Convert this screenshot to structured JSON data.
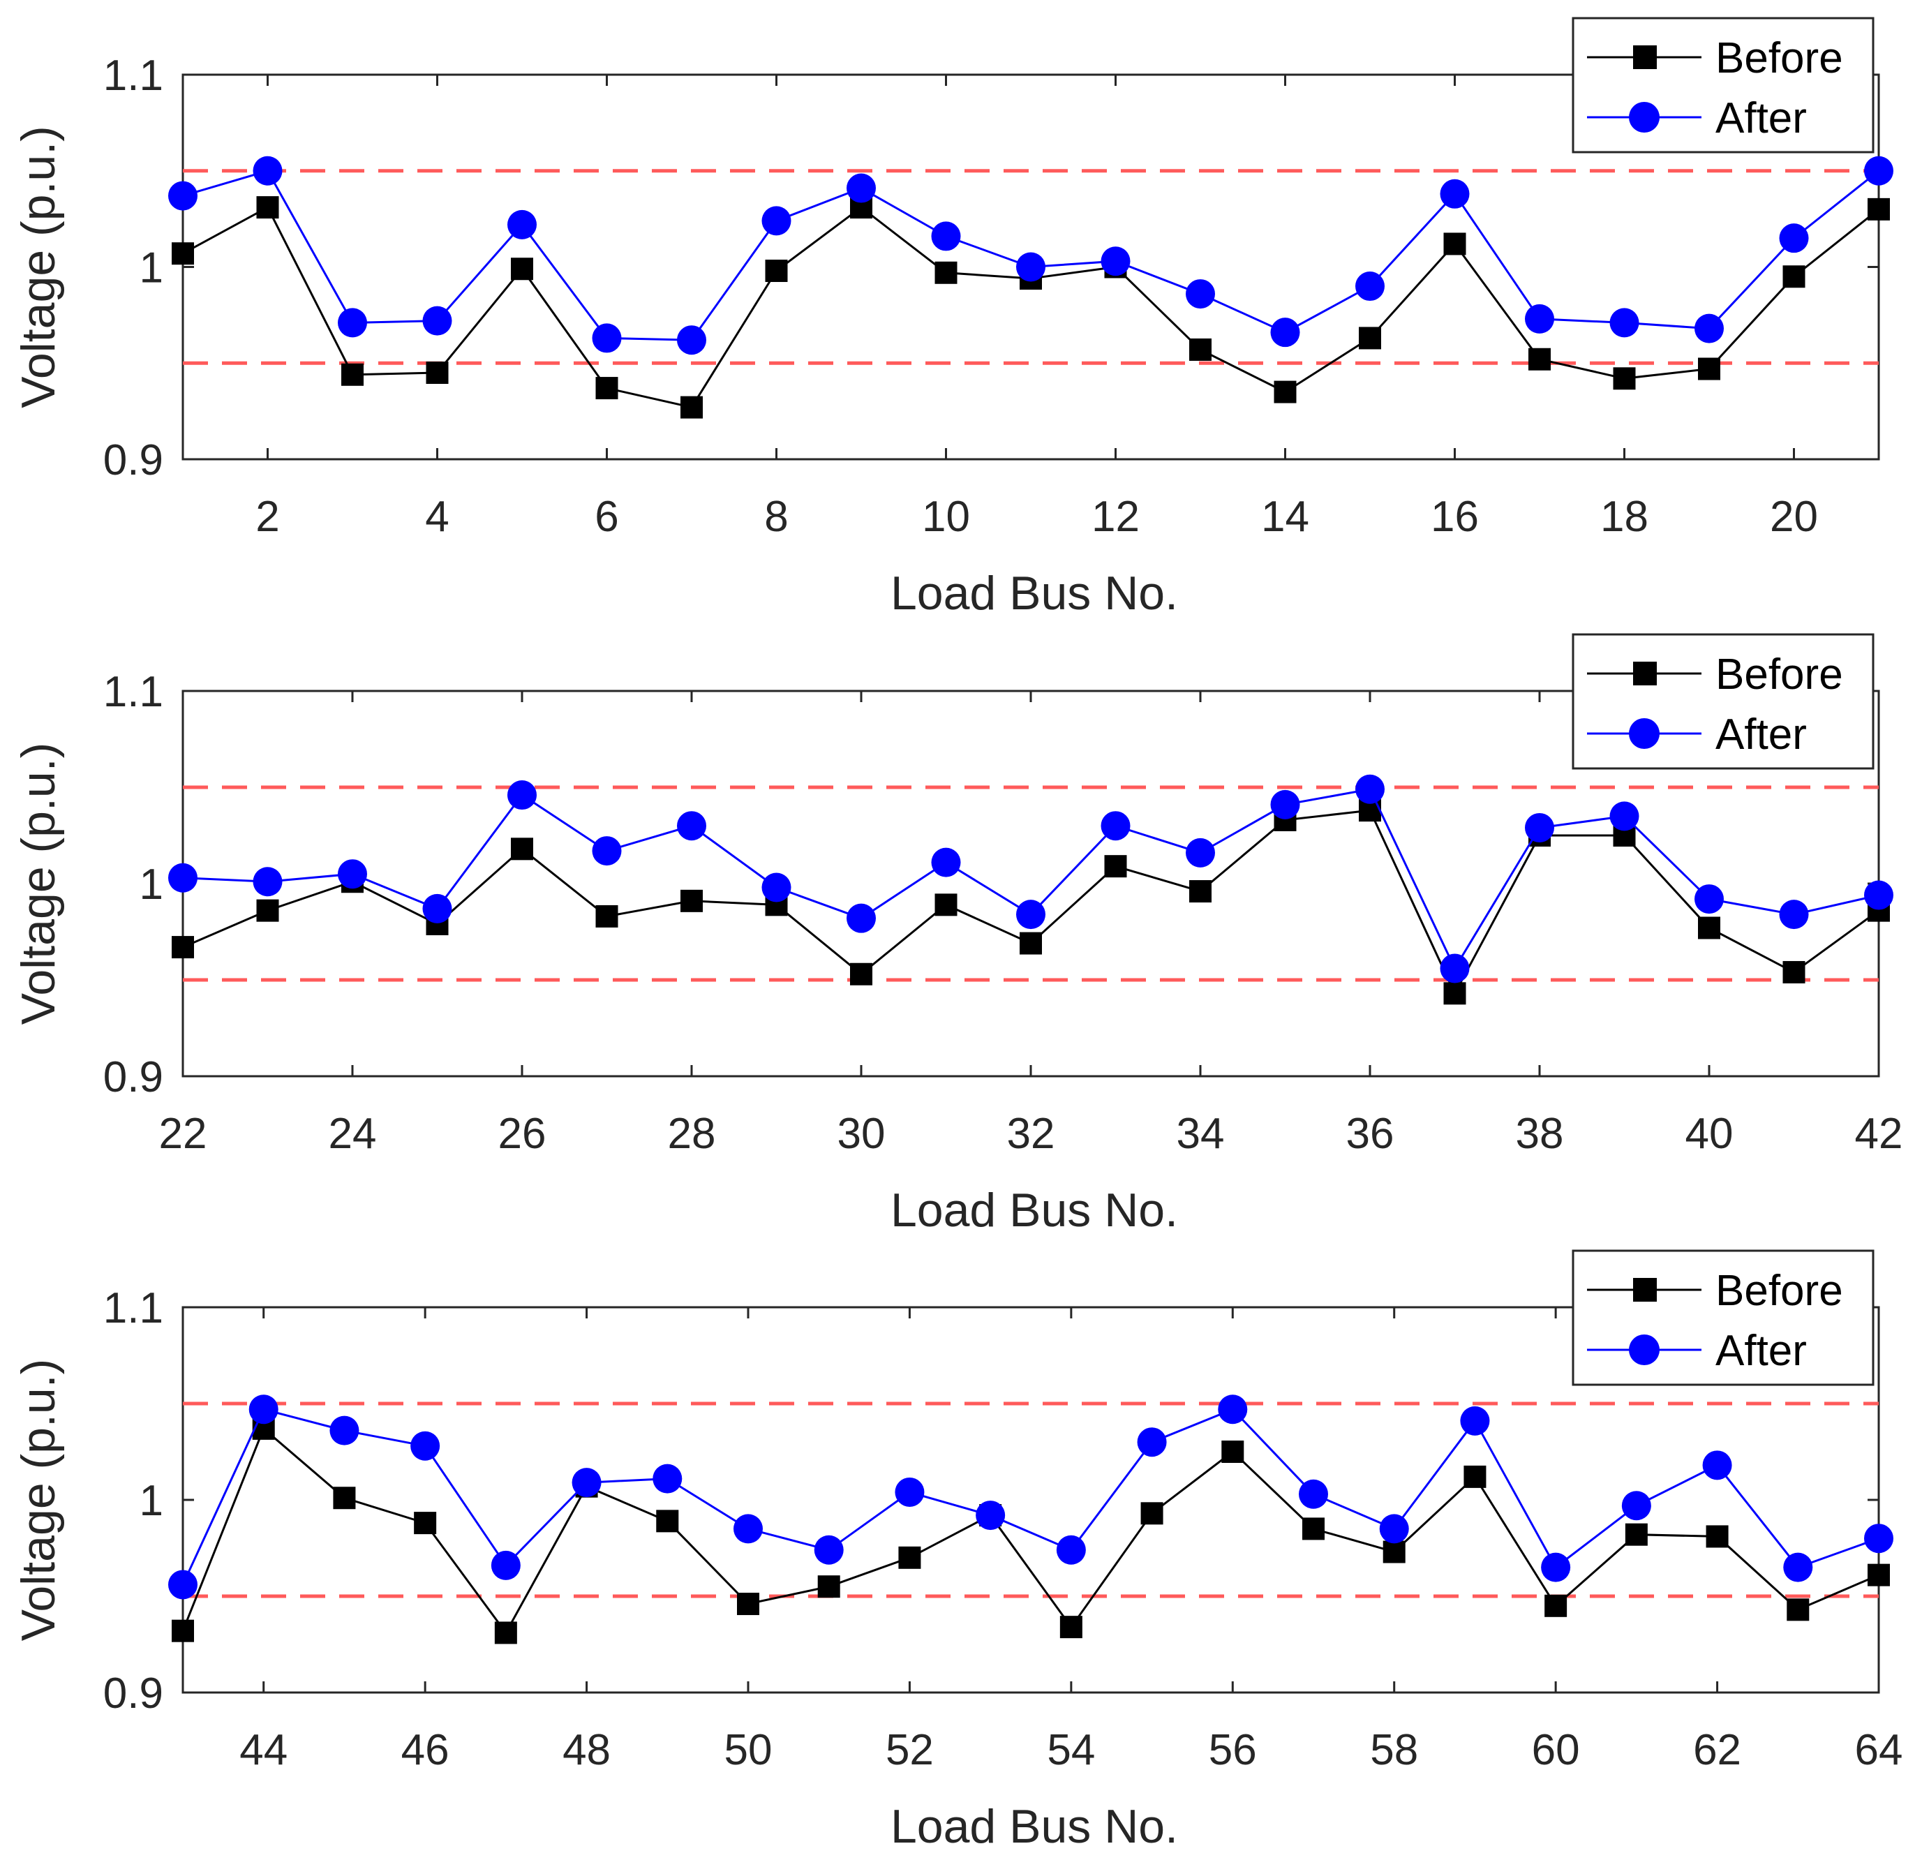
{
  "colors": {
    "before": "#000000",
    "after": "#0000ff",
    "limit": "#ff5a5a",
    "axis": "#262626"
  },
  "legend": {
    "before": "Before",
    "after": "After"
  },
  "chart_data": [
    {
      "type": "line",
      "xlabel": "Load Bus No.",
      "ylabel": "Voltage (p.u.)",
      "xlim": [
        1,
        21
      ],
      "ylim": [
        0.9,
        1.1
      ],
      "xticks": [
        2,
        4,
        6,
        8,
        10,
        12,
        14,
        16,
        18,
        20
      ],
      "yticks": [
        0.9,
        1,
        1.1
      ],
      "ytick_labels": [
        "0.9",
        "1",
        "1.1"
      ],
      "limits": [
        0.95,
        1.05
      ],
      "x": [
        1,
        2,
        3,
        4,
        5,
        6,
        7,
        8,
        9,
        10,
        11,
        12,
        13,
        14,
        15,
        16,
        17,
        18,
        19,
        20,
        21
      ],
      "series": [
        {
          "name": "Before",
          "values": [
            1.007,
            1.031,
            0.944,
            0.945,
            0.999,
            0.937,
            0.927,
            0.998,
            1.031,
            0.997,
            0.994,
            1.0,
            0.957,
            0.935,
            0.963,
            1.012,
            0.952,
            0.942,
            0.947,
            0.995,
            1.03
          ]
        },
        {
          "name": "After",
          "values": [
            1.037,
            1.05,
            0.971,
            0.972,
            1.022,
            0.963,
            0.962,
            1.024,
            1.041,
            1.016,
            1.0,
            1.003,
            0.986,
            0.966,
            0.99,
            1.038,
            0.973,
            0.971,
            0.968,
            1.015,
            1.05
          ]
        }
      ]
    },
    {
      "type": "line",
      "xlabel": "Load Bus No.",
      "ylabel": "Voltage (p.u.)",
      "xlim": [
        22,
        42
      ],
      "ylim": [
        0.9,
        1.1
      ],
      "xticks": [
        22,
        24,
        26,
        28,
        30,
        32,
        34,
        36,
        38,
        40,
        42
      ],
      "yticks": [
        0.9,
        1,
        1.1
      ],
      "ytick_labels": [
        "0.9",
        "1",
        "1.1"
      ],
      "limits": [
        0.95,
        1.05
      ],
      "x": [
        22,
        23,
        24,
        25,
        26,
        27,
        28,
        29,
        30,
        31,
        32,
        33,
        34,
        35,
        36,
        37,
        38,
        39,
        40,
        41,
        42
      ],
      "series": [
        {
          "name": "Before",
          "values": [
            0.967,
            0.986,
            1.001,
            0.979,
            1.018,
            0.983,
            0.991,
            0.989,
            0.953,
            0.989,
            0.969,
            1.009,
            0.996,
            1.033,
            1.038,
            0.943,
            1.025,
            1.025,
            0.977,
            0.954,
            0.986
          ]
        },
        {
          "name": "After",
          "values": [
            1.003,
            1.001,
            1.005,
            0.987,
            1.046,
            1.017,
            1.03,
            0.998,
            0.982,
            1.011,
            0.984,
            1.03,
            1.016,
            1.041,
            1.049,
            0.956,
            1.029,
            1.035,
            0.992,
            0.984,
            0.994
          ]
        }
      ]
    },
    {
      "type": "line",
      "xlabel": "Load Bus No.",
      "ylabel": "Voltage (p.u.)",
      "xlim": [
        43,
        64
      ],
      "ylim": [
        0.9,
        1.1
      ],
      "xticks": [
        44,
        46,
        48,
        50,
        52,
        54,
        56,
        58,
        60,
        62,
        64
      ],
      "yticks": [
        0.9,
        1,
        1.1
      ],
      "ytick_labels": [
        "0.9",
        "1",
        "1.1"
      ],
      "limits": [
        0.95,
        1.05
      ],
      "x": [
        43,
        44,
        45,
        46,
        47,
        48,
        49,
        50,
        51,
        52,
        53,
        54,
        55,
        56,
        57,
        58,
        59,
        60,
        61,
        62,
        63,
        64
      ],
      "series": [
        {
          "name": "Before",
          "values": [
            0.932,
            1.037,
            1.001,
            0.988,
            0.931,
            1.007,
            0.989,
            0.946,
            0.955,
            0.97,
            0.992,
            0.934,
            0.993,
            1.025,
            0.985,
            0.973,
            1.012,
            0.945,
            0.982,
            0.981,
            0.943,
            0.961
          ]
        },
        {
          "name": "After",
          "values": [
            0.956,
            1.047,
            1.036,
            1.028,
            0.966,
            1.009,
            1.011,
            0.985,
            0.974,
            1.004,
            0.992,
            0.974,
            1.03,
            1.047,
            1.003,
            0.985,
            1.041,
            0.965,
            0.997,
            1.018,
            0.965,
            0.98
          ]
        }
      ]
    }
  ]
}
